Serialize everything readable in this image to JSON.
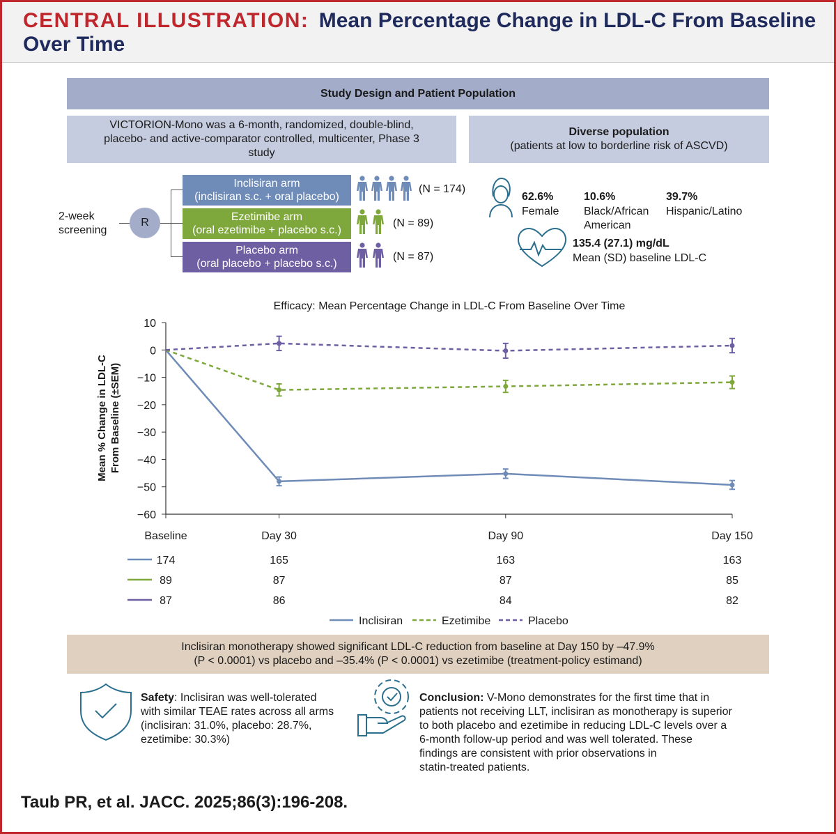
{
  "header": {
    "label": "CENTRAL ILLUSTRATION:",
    "title": "Mean Percentage Change in LDL-C From Baseline Over Time"
  },
  "study_design": {
    "heading": "Study Design and Patient Population",
    "description": "VICTORION-Mono was a 6-month, randomized, double-blind, placebo- and active-comparator controlled, multicenter, Phase 3 study",
    "diverse_title": "Diverse population",
    "diverse_sub": "(patients at low to borderline risk of ASCVD)",
    "screening": [
      "2-week",
      "screening"
    ],
    "randomization": "R",
    "arms": [
      {
        "name": "Inclisiran arm",
        "desc": "(inclisiran s.c. + oral placebo)",
        "n": "(N = 174)",
        "color": "#6f8bb8"
      },
      {
        "name": "Ezetimibe arm",
        "desc": "(oral ezetimibe + placebo s.c.)",
        "n": "(N = 89)",
        "color": "#7fa83c"
      },
      {
        "name": "Placebo arm",
        "desc": "(oral placebo + placebo s.c.)",
        "n": "(N = 87)",
        "color": "#6e5fa3"
      }
    ],
    "stats": [
      {
        "pct": "62.6%",
        "label": [
          "Female"
        ]
      },
      {
        "pct": "10.6%",
        "label": [
          "Black/African",
          "American"
        ]
      },
      {
        "pct": "39.7%",
        "label": [
          "Hispanic/Latino"
        ]
      }
    ],
    "ldl_value": "135.4 (27.1) mg/dL",
    "ldl_label": "Mean (SD) baseline LDL-C"
  },
  "chart_data": {
    "type": "line",
    "title": "Efficacy: Mean Percentage Change in LDL-C From Baseline Over Time",
    "ylabel": "Mean % Change in LDL-C From Baseline (±SEM)",
    "xlabel": "",
    "ylim": [
      -60,
      10
    ],
    "yticks": [
      10,
      0,
      -10,
      -20,
      -30,
      -40,
      -50,
      -60
    ],
    "categories": [
      "Baseline",
      "Day 30",
      "Day 90",
      "Day 150"
    ],
    "x_days": [
      0,
      30,
      90,
      150
    ],
    "series": [
      {
        "name": "Inclisiran",
        "color": "#6f8bb8",
        "style": "solid",
        "values": [
          0,
          -48.0,
          -45.2,
          -49.3
        ],
        "sem": [
          0,
          1.6,
          1.7,
          1.6
        ],
        "n_at_risk": [
          "174",
          "165",
          "163",
          "163"
        ]
      },
      {
        "name": "Ezetimibe",
        "color": "#7fa83c",
        "style": "dashed",
        "values": [
          0,
          -14.6,
          -13.3,
          -11.8
        ],
        "sem": [
          0,
          2.2,
          2.2,
          2.3
        ],
        "n_at_risk": [
          "89",
          "87",
          "87",
          "85"
        ]
      },
      {
        "name": "Placebo",
        "color": "#6e5fa3",
        "style": "dashed",
        "values": [
          0,
          2.4,
          -0.3,
          1.6
        ],
        "sem": [
          0,
          2.6,
          2.7,
          2.6
        ],
        "n_at_risk": [
          "87",
          "86",
          "84",
          "82"
        ]
      }
    ],
    "grid": false,
    "legend": "bottom"
  },
  "result_text": [
    "Inclisiran monotherapy showed significant LDL-C reduction from baseline at Day 150 by –47.9%",
    "(P < 0.0001) vs placebo and –35.4% (P < 0.0001) vs ezetimibe (treatment-policy estimand)"
  ],
  "safety": {
    "label": "Safety",
    "lines": [
      ": Inclisiran was well-tolerated",
      "with similar TEAE rates across all arms",
      "(inclisiran: 31.0%, placebo: 28.7%,",
      "ezetimibe: 30.3%)"
    ]
  },
  "conclusion": {
    "label": "Conclusion:",
    "lines": [
      " V-Mono demonstrates for the first time that in",
      "patients not receiving LLT, inclisiran as monotherapy is superior",
      "to both placebo and ezetimibe in reducing LDL-C levels over a",
      "6-month follow-up period and was well tolerated. These",
      "findings are consistent with prior observations in",
      "statin-treated patients."
    ]
  },
  "citation": "Taub PR, et al. JACC. 2025;86(3):196-208.",
  "icons": {
    "female": "female-avatar-icon",
    "heart": "heart-pulse-icon",
    "shield": "shield-check-icon",
    "gear": "gear-hand-icon",
    "person": "person-icon"
  }
}
